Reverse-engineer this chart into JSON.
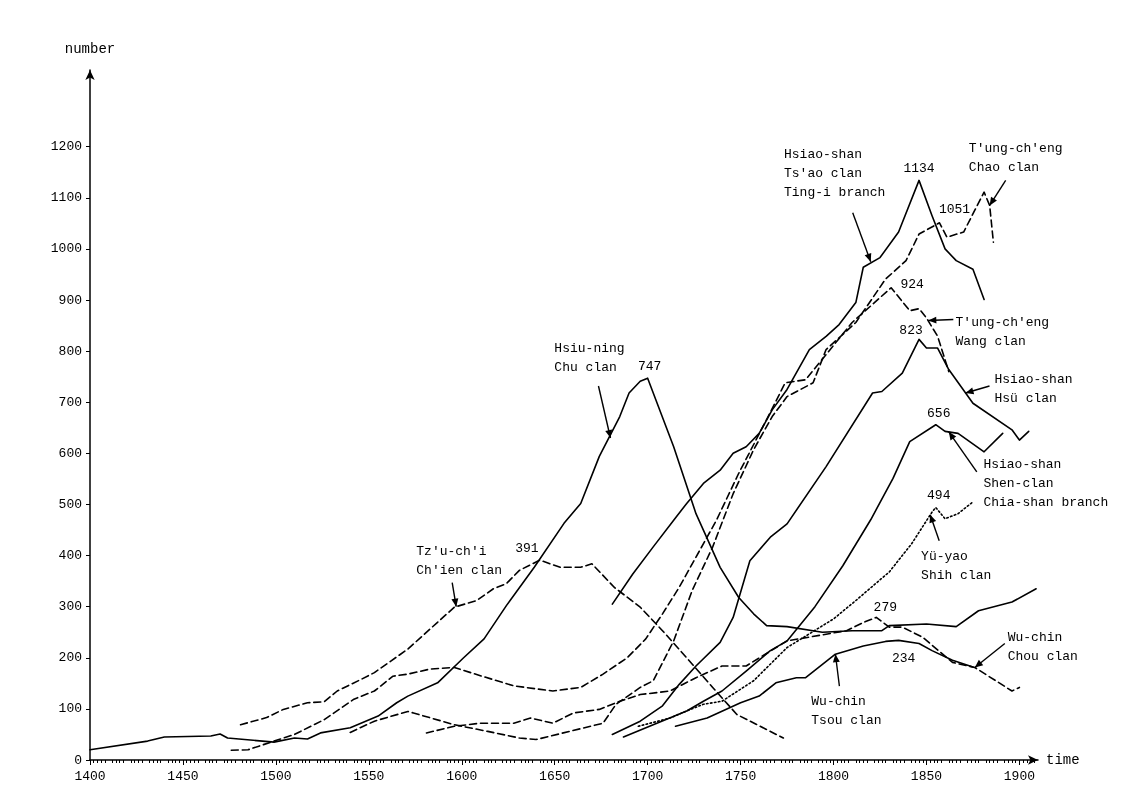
{
  "chart_data": {
    "type": "line",
    "xlabel": "time",
    "ylabel": "number",
    "xlim": [
      1400,
      1910
    ],
    "xticks": [
      1400,
      1450,
      1500,
      1550,
      1600,
      1650,
      1700,
      1750,
      1800,
      1850,
      1900
    ],
    "ylim": [
      0,
      1350
    ],
    "yticks": [
      0,
      100,
      200,
      300,
      400,
      500,
      600,
      700,
      800,
      900,
      1000,
      1100,
      1200
    ],
    "grid": false,
    "marker": "none",
    "series": [
      {
        "color": "#000000",
        "line_style": "solid",
        "x": [
          1400,
          1431,
          1440,
          1465,
          1470,
          1474,
          1499,
          1510,
          1517,
          1524,
          1540,
          1555,
          1565,
          1571,
          1587,
          1601,
          1612,
          1624,
          1639,
          1655,
          1664,
          1674,
          1685,
          1690,
          1696,
          1700,
          1714,
          1726,
          1739,
          1749,
          1757,
          1764,
          1775,
          1794,
          1810,
          1826,
          1830,
          1850,
          1866,
          1878,
          1896,
          1909
        ],
        "values": [
          20,
          37,
          45,
          47,
          51,
          43,
          35,
          43,
          41,
          53,
          63,
          86,
          112,
          125,
          151,
          200,
          237,
          302,
          377,
          463,
          502,
          594,
          672,
          718,
          741,
          747,
          613,
          482,
          377,
          318,
          286,
          263,
          261,
          250,
          253,
          253,
          263,
          266,
          261,
          292,
          309,
          335
        ]
      },
      {
        "color": "#000000",
        "line_style": "dashed",
        "x": [
          1481,
          1495,
          1504,
          1517,
          1526,
          1533,
          1546,
          1553,
          1571,
          1578,
          1596,
          1608,
          1617,
          1624,
          1631,
          1642,
          1653,
          1664,
          1670,
          1682,
          1696,
          1708,
          1721,
          1735,
          1748,
          1773
        ],
        "values": [
          69,
          83,
          99,
          112,
          114,
          135,
          158,
          171,
          217,
          240,
          299,
          312,
          335,
          345,
          371,
          391,
          377,
          377,
          384,
          338,
          299,
          253,
          200,
          142,
          89,
          43
        ]
      },
      {
        "color": "#000000",
        "line_style": "dashed",
        "x": [
          1476,
          1485,
          1499,
          1510,
          1526,
          1542,
          1553,
          1563,
          1571,
          1583,
          1596,
          1610,
          1628,
          1649,
          1664,
          1676,
          1689,
          1699,
          1708,
          1717,
          1728,
          1737,
          1749,
          1764,
          1774,
          1785,
          1810,
          1831,
          1841,
          1846,
          1850,
          1856,
          1862
        ],
        "values": [
          19,
          20,
          37,
          50,
          79,
          119,
          135,
          164,
          168,
          178,
          181,
          165,
          145,
          135,
          142,
          168,
          200,
          237,
          286,
          338,
          410,
          469,
          561,
          666,
          738,
          744,
          856,
          924,
          879,
          883,
          865,
          829,
          760
        ]
      },
      {
        "color": "#000000",
        "line_style": "dashed",
        "x": [
          1540,
          1553,
          1571,
          1574,
          1596,
          1614,
          1631,
          1640,
          1658,
          1676,
          1683,
          1696,
          1703,
          1714,
          1724,
          1735,
          1746,
          1757,
          1767,
          1775,
          1789,
          1796,
          1812,
          1828,
          1839,
          1846,
          1857,
          1861,
          1870,
          1881,
          1884,
          1886
        ],
        "values": [
          54,
          76,
          95,
          92,
          69,
          56,
          43,
          40,
          56,
          72,
          109,
          142,
          155,
          233,
          332,
          417,
          521,
          607,
          672,
          711,
          738,
          803,
          856,
          941,
          977,
          1029,
          1051,
          1023,
          1033,
          1111,
          1085,
          1013
        ]
      },
      {
        "color": "#000000",
        "line_style": "solid",
        "x": [
          1681,
          1692,
          1703,
          1714,
          1721,
          1730,
          1739,
          1746,
          1753,
          1760,
          1767,
          1775,
          1787,
          1796,
          1803,
          1812,
          1816,
          1825,
          1835,
          1846,
          1853,
          1860,
          1866,
          1875,
          1881
        ],
        "values": [
          305,
          364,
          417,
          469,
          502,
          541,
          567,
          600,
          613,
          639,
          685,
          725,
          803,
          829,
          852,
          895,
          964,
          983,
          1033,
          1134,
          1065,
          1000,
          977,
          960,
          901
        ]
      },
      {
        "color": "#000000",
        "line_style": "solid",
        "x": [
          1681,
          1696,
          1708,
          1717,
          1726,
          1739,
          1746,
          1755,
          1766,
          1775,
          1796,
          1821,
          1826,
          1837,
          1846,
          1850,
          1856,
          1862,
          1875,
          1896,
          1900,
          1905
        ],
        "values": [
          50,
          76,
          106,
          148,
          184,
          230,
          279,
          390,
          436,
          462,
          574,
          718,
          721,
          757,
          823,
          806,
          806,
          764,
          698,
          646,
          626,
          643
        ]
      },
      {
        "color": "#000000",
        "line_style": "solid",
        "x": [
          1687,
          1703,
          1721,
          1730,
          1740,
          1753,
          1766,
          1775,
          1790,
          1805,
          1820,
          1832,
          1841,
          1855,
          1860,
          1867,
          1881,
          1891
        ],
        "values": [
          45,
          69,
          96,
          115,
          135,
          174,
          214,
          233,
          300,
          380,
          470,
          551,
          623,
          656,
          643,
          639,
          603,
          639
        ]
      },
      {
        "color": "#000000",
        "line_style": "dotted",
        "x": [
          1695,
          1712,
          1721,
          1730,
          1740,
          1757,
          1775,
          1800,
          1812,
          1830,
          1842,
          1853,
          1855,
          1860,
          1867,
          1875
        ],
        "values": [
          66,
          82,
          96,
          109,
          115,
          155,
          220,
          276,
          312,
          368,
          423,
          485,
          494,
          472,
          482,
          505
        ]
      },
      {
        "color": "#000000",
        "line_style": "dashed",
        "x": [
          1581,
          1596,
          1610,
          1628,
          1637,
          1649,
          1660,
          1674,
          1685,
          1696,
          1712,
          1726,
          1740,
          1753,
          1775,
          1807,
          1816,
          1823,
          1830,
          1837,
          1848,
          1864,
          1876,
          1896,
          1900
        ],
        "values": [
          53,
          66,
          72,
          72,
          82,
          72,
          92,
          99,
          115,
          128,
          135,
          161,
          184,
          184,
          233,
          253,
          269,
          279,
          260,
          260,
          240,
          191,
          181,
          135,
          142
        ]
      },
      {
        "color": "#000000",
        "line_style": "solid",
        "x": [
          1715,
          1732,
          1750,
          1760,
          1769,
          1780,
          1785,
          1801,
          1816,
          1828,
          1835,
          1846,
          1853,
          1864,
          1875
        ],
        "values": [
          66,
          82,
          112,
          125,
          151,
          161,
          161,
          207,
          223,
          232,
          234,
          228,
          214,
          195,
          182
        ]
      }
    ],
    "annotations": [
      {
        "text": "Hsiu-ning\nChu clan",
        "x": 1680,
        "y": 630
      },
      {
        "text": "Tz'u-ch'i\nCh'ien clan",
        "x": 1597,
        "y": 300
      },
      {
        "text": "Hsiao-shan\nTs'ao clan\nTing-i branch",
        "x": 1820,
        "y": 975
      },
      {
        "text": "T'ung-ch'eng\nChao clan",
        "x": 1884,
        "y": 1085
      },
      {
        "text": "T'ung-ch'eng\nWang clan",
        "x": 1851,
        "y": 860
      },
      {
        "text": "Hsiao-shan\nHsü clan",
        "x": 1871,
        "y": 718
      },
      {
        "text": "Hsiao-shan\nShen-clan\nChia-shan branch",
        "x": 1862,
        "y": 642
      },
      {
        "text": "Yü-yao\nShih clan",
        "x": 1852,
        "y": 480
      },
      {
        "text": "Wu-chin\nChou clan",
        "x": 1876,
        "y": 181
      },
      {
        "text": "Wu-chin\nTsou clan",
        "x": 1801,
        "y": 207
      },
      {
        "text": "747",
        "x": 1700,
        "y": 747
      },
      {
        "text": "391",
        "x": 1642,
        "y": 391
      },
      {
        "text": "1134",
        "x": 1846,
        "y": 1134
      },
      {
        "text": "1051",
        "x": 1857,
        "y": 1051
      },
      {
        "text": "924",
        "x": 1831,
        "y": 924
      },
      {
        "text": "823",
        "x": 1846,
        "y": 823
      },
      {
        "text": "656",
        "x": 1855,
        "y": 656
      },
      {
        "text": "494",
        "x": 1855,
        "y": 494
      },
      {
        "text": "279",
        "x": 1823,
        "y": 279
      },
      {
        "text": "234",
        "x": 1835,
        "y": 234
      }
    ]
  }
}
